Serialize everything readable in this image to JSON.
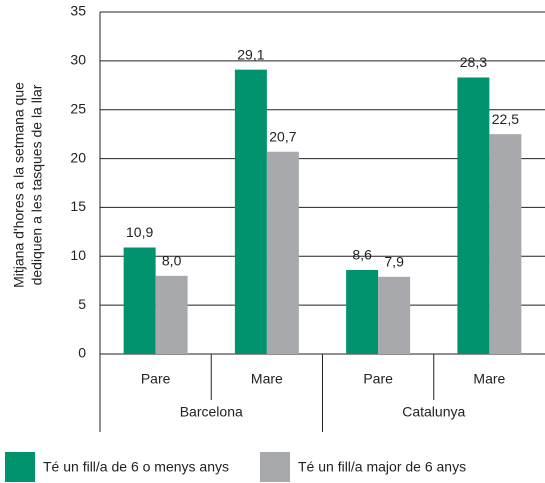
{
  "chart_data": {
    "type": "bar",
    "ylabel": [
      "Mitjana d'hores a la setmana que",
      "dediquen a les tasques de la llar"
    ],
    "categories": [
      "Pare",
      "Mare",
      "Pare",
      "Mare"
    ],
    "groups": [
      "Barcelona",
      "Catalunya"
    ],
    "series": [
      {
        "name": "Té un fill/a de 6 o menys anys",
        "color": "#00936e",
        "values": [
          10.9,
          29.1,
          8.6,
          28.3
        ],
        "value_labels": [
          "10,9",
          "29,1",
          "8,6",
          "28,3"
        ]
      },
      {
        "name": "Té un fill/a major de 6 anys",
        "color": "#a7a9ac",
        "values": [
          8.0,
          20.7,
          7.9,
          22.5
        ],
        "value_labels": [
          "8,0",
          "20,7",
          "7,9",
          "22,5"
        ]
      }
    ],
    "ylim": [
      0,
      35
    ],
    "yticks": [
      0,
      5,
      10,
      15,
      20,
      25,
      30,
      35
    ],
    "grid": true
  }
}
